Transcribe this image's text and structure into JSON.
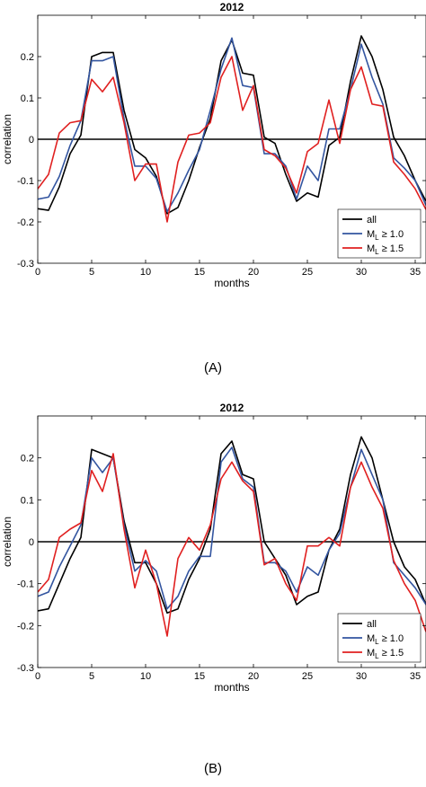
{
  "chart_data": [
    {
      "type": "line",
      "panel_label": "(A)",
      "title": "2012",
      "xlabel": "months",
      "ylabel": "correlation",
      "xlim": [
        0,
        36
      ],
      "ylim": [
        -0.3,
        0.3
      ],
      "xticks": [
        0,
        5,
        10,
        15,
        20,
        25,
        30,
        35
      ],
      "yticks": [
        -0.3,
        -0.2,
        -0.1,
        0,
        0.1,
        0.2
      ],
      "ytick_labels": [
        "-0.3",
        "-0.2",
        "-0.1",
        "0",
        "0.1",
        "0.2"
      ],
      "zero_line": true,
      "legend": {
        "placement": "bottom-right",
        "entries": [
          {
            "main": "all",
            "sub": "",
            "tail": ""
          },
          {
            "main": "M",
            "sub": "L",
            "tail": " ≥ 1.0"
          },
          {
            "main": "M",
            "sub": "L",
            "tail": " ≥ 1.5"
          }
        ]
      },
      "series": [
        {
          "color": "#000000",
          "x": [
            0,
            1,
            2,
            3,
            4,
            5,
            6,
            7,
            8,
            9,
            10,
            11,
            12,
            13,
            14,
            15,
            16,
            17,
            18,
            19,
            20,
            21,
            22,
            23,
            24,
            25,
            26,
            27,
            28,
            29,
            30,
            31,
            32,
            33,
            34,
            35,
            36
          ],
          "y": [
            -0.168,
            -0.172,
            -0.115,
            -0.035,
            0.01,
            0.2,
            0.21,
            0.21,
            0.07,
            -0.025,
            -0.045,
            -0.09,
            -0.18,
            -0.165,
            -0.1,
            -0.02,
            0.05,
            0.19,
            0.24,
            0.16,
            0.155,
            0.005,
            -0.01,
            -0.085,
            -0.15,
            -0.13,
            -0.14,
            -0.015,
            0.005,
            0.14,
            0.25,
            0.2,
            0.12,
            0.005,
            -0.04,
            -0.1,
            -0.15
          ]
        },
        {
          "color": "#3355a0",
          "x": [
            0,
            1,
            2,
            3,
            4,
            5,
            6,
            7,
            8,
            9,
            10,
            11,
            12,
            13,
            14,
            15,
            16,
            17,
            18,
            19,
            20,
            21,
            22,
            23,
            24,
            25,
            26,
            27,
            28,
            29,
            30,
            31,
            32,
            33,
            34,
            35,
            36
          ],
          "y": [
            -0.145,
            -0.14,
            -0.09,
            -0.015,
            0.045,
            0.19,
            0.19,
            0.2,
            0.05,
            -0.065,
            -0.065,
            -0.095,
            -0.175,
            -0.13,
            -0.075,
            -0.025,
            0.07,
            0.17,
            0.245,
            0.13,
            0.125,
            -0.035,
            -0.035,
            -0.065,
            -0.145,
            -0.065,
            -0.1,
            0.025,
            0.025,
            0.12,
            0.23,
            0.15,
            0.085,
            -0.045,
            -0.07,
            -0.1,
            -0.16
          ]
        },
        {
          "color": "#e02020",
          "x": [
            0,
            1,
            2,
            3,
            4,
            5,
            6,
            7,
            8,
            9,
            10,
            11,
            12,
            13,
            14,
            15,
            16,
            17,
            18,
            19,
            20,
            21,
            22,
            23,
            24,
            25,
            26,
            27,
            28,
            29,
            30,
            31,
            32,
            33,
            34,
            35,
            36
          ],
          "y": [
            -0.12,
            -0.085,
            0.015,
            0.04,
            0.045,
            0.145,
            0.115,
            0.15,
            0.04,
            -0.1,
            -0.06,
            -0.06,
            -0.2,
            -0.055,
            0.01,
            0.015,
            0.04,
            0.15,
            0.2,
            0.07,
            0.13,
            -0.025,
            -0.04,
            -0.07,
            -0.13,
            -0.03,
            -0.01,
            0.095,
            -0.01,
            0.12,
            0.175,
            0.085,
            0.08,
            -0.055,
            -0.085,
            -0.12,
            -0.17
          ]
        }
      ]
    },
    {
      "type": "line",
      "panel_label": "(B)",
      "title": "2012",
      "xlabel": "months",
      "ylabel": "correlation",
      "xlim": [
        0,
        36
      ],
      "ylim": [
        -0.3,
        0.3
      ],
      "xticks": [
        0,
        5,
        10,
        15,
        20,
        25,
        30,
        35
      ],
      "yticks": [
        -0.3,
        -0.2,
        -0.1,
        0,
        0.1,
        0.2
      ],
      "ytick_labels": [
        "-0.3",
        "-0.2",
        "-0.1",
        "0",
        "0.1",
        "0.2"
      ],
      "zero_line": true,
      "legend": {
        "placement": "bottom-right",
        "entries": [
          {
            "main": "all",
            "sub": "",
            "tail": ""
          },
          {
            "main": "M",
            "sub": "L",
            "tail": " ≥ 1.0"
          },
          {
            "main": "M",
            "sub": "L",
            "tail": " ≥ 1.5"
          }
        ]
      },
      "series": [
        {
          "color": "#000000",
          "x": [
            0,
            1,
            2,
            3,
            4,
            5,
            6,
            7,
            8,
            9,
            10,
            11,
            12,
            13,
            14,
            15,
            16,
            17,
            18,
            19,
            20,
            21,
            22,
            23,
            24,
            25,
            26,
            27,
            28,
            29,
            30,
            31,
            32,
            33,
            34,
            35,
            36
          ],
          "y": [
            -0.165,
            -0.16,
            -0.1,
            -0.04,
            0.01,
            0.22,
            0.21,
            0.2,
            0.05,
            -0.05,
            -0.05,
            -0.1,
            -0.17,
            -0.16,
            -0.09,
            -0.04,
            0.03,
            0.21,
            0.24,
            0.16,
            0.15,
            0.0,
            -0.04,
            -0.08,
            -0.15,
            -0.13,
            -0.12,
            -0.02,
            0.03,
            0.16,
            0.25,
            0.2,
            0.1,
            0.0,
            -0.06,
            -0.09,
            -0.15
          ]
        },
        {
          "color": "#3355a0",
          "x": [
            0,
            1,
            2,
            3,
            4,
            5,
            6,
            7,
            8,
            9,
            10,
            11,
            12,
            13,
            14,
            15,
            16,
            17,
            18,
            19,
            20,
            21,
            22,
            23,
            24,
            25,
            26,
            27,
            28,
            29,
            30,
            31,
            32,
            33,
            34,
            35,
            36
          ],
          "y": [
            -0.13,
            -0.12,
            -0.06,
            -0.01,
            0.04,
            0.2,
            0.165,
            0.2,
            0.04,
            -0.07,
            -0.045,
            -0.07,
            -0.16,
            -0.13,
            -0.07,
            -0.035,
            -0.035,
            0.19,
            0.225,
            0.15,
            0.13,
            -0.05,
            -0.05,
            -0.07,
            -0.12,
            -0.06,
            -0.08,
            -0.02,
            0.02,
            0.13,
            0.22,
            0.16,
            0.1,
            -0.05,
            -0.08,
            -0.11,
            -0.15
          ]
        },
        {
          "color": "#e02020",
          "x": [
            0,
            1,
            2,
            3,
            4,
            5,
            6,
            7,
            8,
            9,
            10,
            11,
            12,
            13,
            14,
            15,
            16,
            17,
            18,
            19,
            20,
            21,
            22,
            23,
            24,
            25,
            26,
            27,
            28,
            29,
            30,
            31,
            32,
            33,
            34,
            35,
            36
          ],
          "y": [
            -0.12,
            -0.09,
            0.01,
            0.03,
            0.045,
            0.17,
            0.12,
            0.21,
            0.03,
            -0.11,
            -0.02,
            -0.1,
            -0.225,
            -0.04,
            0.01,
            -0.02,
            0.04,
            0.15,
            0.19,
            0.145,
            0.12,
            -0.055,
            -0.04,
            -0.1,
            -0.14,
            -0.01,
            -0.01,
            0.01,
            -0.01,
            0.13,
            0.19,
            0.13,
            0.08,
            -0.045,
            -0.1,
            -0.14,
            -0.215
          ]
        }
      ]
    }
  ]
}
